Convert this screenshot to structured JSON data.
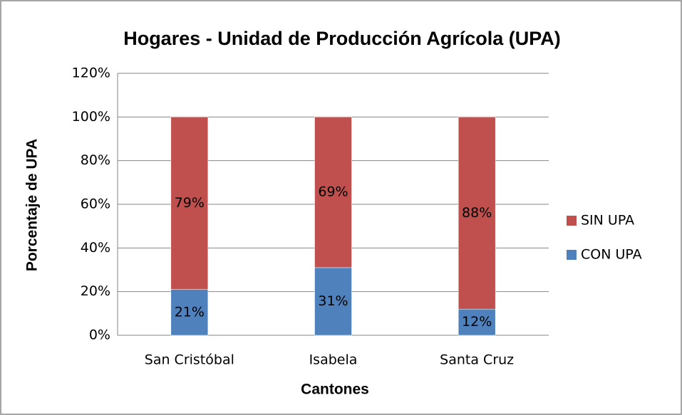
{
  "chart_data": {
    "type": "stacked_bar",
    "title": "Hogares - Unidad de Producción Agrícola (UPA)",
    "x_label": "Cantones",
    "y_label": "Porcentaje de UPA",
    "categories": [
      "San Cristóbal",
      "Isabela",
      "Santa Cruz"
    ],
    "series": [
      {
        "name": "CON UPA",
        "color": "#4f81bd",
        "values": [
          21,
          31,
          12
        ],
        "value_labels": [
          "21%",
          "31%",
          "12%"
        ]
      },
      {
        "name": "SIN UPA",
        "color": "#c0504d",
        "values": [
          79,
          69,
          88
        ],
        "value_labels": [
          "79%",
          "69%",
          "88%"
        ]
      }
    ],
    "ylim": [
      0,
      120
    ],
    "yticks": [
      {
        "value": 0,
        "label": "0%"
      },
      {
        "value": 20,
        "label": "20%"
      },
      {
        "value": 40,
        "label": "40%"
      },
      {
        "value": 60,
        "label": "60%"
      },
      {
        "value": 80,
        "label": "80%"
      },
      {
        "value": 100,
        "label": "100%"
      },
      {
        "value": 120,
        "label": "120%"
      }
    ],
    "grid": true,
    "legend": "right"
  }
}
